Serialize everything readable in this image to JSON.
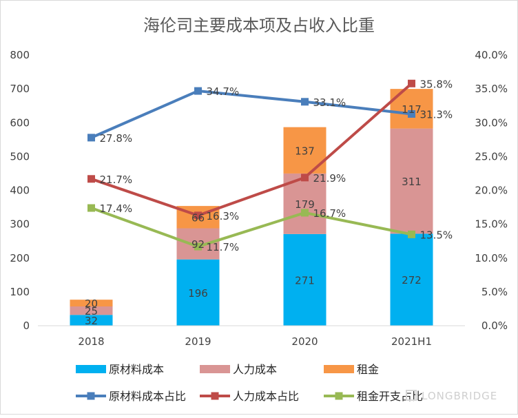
{
  "chart_data": {
    "type": "bar",
    "title": "海伦司主要成本项及占收入比重",
    "categories": [
      "2018",
      "2019",
      "2020",
      "2021H1"
    ],
    "y_left": {
      "min": 0,
      "max": 800,
      "ticks": [
        "0",
        "100",
        "200",
        "300",
        "400",
        "500",
        "600",
        "700",
        "800"
      ]
    },
    "y_right": {
      "min": 0,
      "max": 40,
      "ticks": [
        "0.0%",
        "5.0%",
        "10.0%",
        "15.0%",
        "20.0%",
        "25.0%",
        "30.0%",
        "35.0%",
        "40.0%"
      ]
    },
    "bar_series": [
      {
        "name": "原材料成本",
        "color": "#00b0f0",
        "values": [
          32,
          196,
          271,
          272
        ],
        "labels": [
          "32",
          "196",
          "271",
          "272"
        ]
      },
      {
        "name": "人力成本",
        "color": "#d99594",
        "values": [
          25,
          92,
          179,
          311
        ],
        "labels": [
          "25",
          "92",
          "179",
          "311"
        ]
      },
      {
        "name": "租金",
        "color": "#f79646",
        "values": [
          20,
          66,
          137,
          117
        ],
        "labels": [
          "20",
          "66",
          "137",
          "117"
        ]
      }
    ],
    "line_series": [
      {
        "name": "原材料成本占比",
        "color": "#4a7ebb",
        "values": [
          27.8,
          34.7,
          33.1,
          31.3
        ],
        "labels": [
          "27.8%",
          "34.7%",
          "33.1%",
          "31.3%"
        ]
      },
      {
        "name": "人力成本占比",
        "color": "#be4b48",
        "values": [
          21.7,
          16.3,
          21.9,
          35.8
        ],
        "labels": [
          "21.7%",
          "16.3%",
          "21.9%",
          "35.8%"
        ]
      },
      {
        "name": "租金开支占比",
        "color": "#98b954",
        "values": [
          17.4,
          11.7,
          16.7,
          13.5
        ],
        "labels": [
          "17.4%",
          "11.7%",
          "16.7%",
          "13.5%"
        ]
      }
    ],
    "legend_position": "bottom",
    "grid": false
  },
  "watermark": {
    "text": "LONGBRIDGE"
  }
}
